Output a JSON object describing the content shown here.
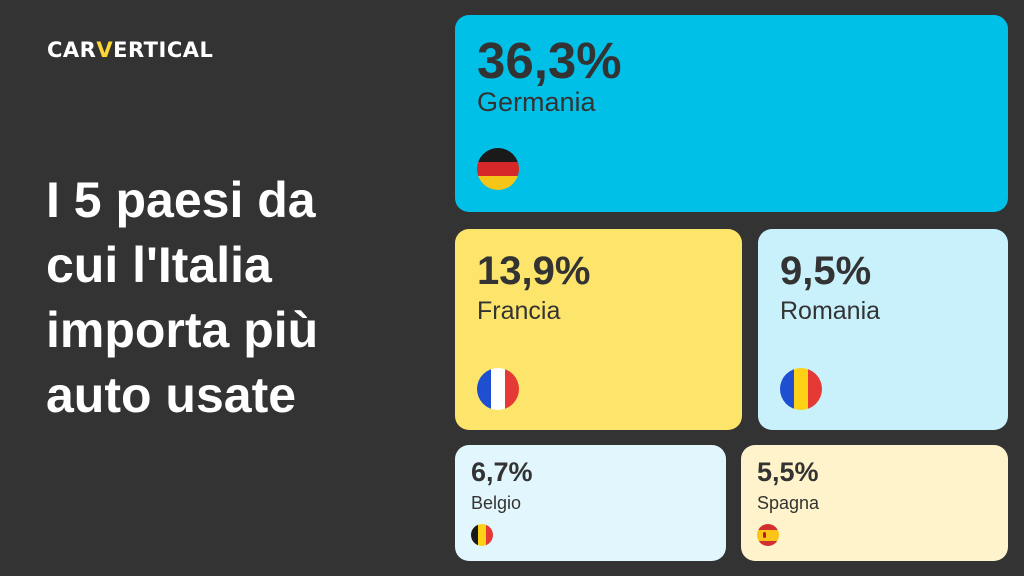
{
  "brand": {
    "left": "CAR",
    "mid": "V",
    "right": "ERTICAL"
  },
  "headline": [
    "I 5 paesi da",
    "cui l'Italia",
    "importa più",
    "auto usate"
  ],
  "chart_data": {
    "type": "treemap",
    "unit": "%",
    "items": [
      {
        "country": "Germania",
        "label": "36,3%",
        "value": 36.3,
        "color": "#00c0e8",
        "flag": "germany-flag-icon"
      },
      {
        "country": "Francia",
        "label": "13,9%",
        "value": 13.9,
        "color": "#fde56b",
        "flag": "france-flag-icon"
      },
      {
        "country": "Romania",
        "label": "9,5%",
        "value": 9.5,
        "color": "#c8f1fb",
        "flag": "romania-flag-icon"
      },
      {
        "country": "Belgio",
        "label": "6,7%",
        "value": 6.7,
        "color": "#e1f7fd",
        "flag": "belgium-flag-icon"
      },
      {
        "country": "Spagna",
        "label": "5,5%",
        "value": 5.5,
        "color": "#fff3cc",
        "flag": "spain-flag-icon"
      }
    ]
  }
}
